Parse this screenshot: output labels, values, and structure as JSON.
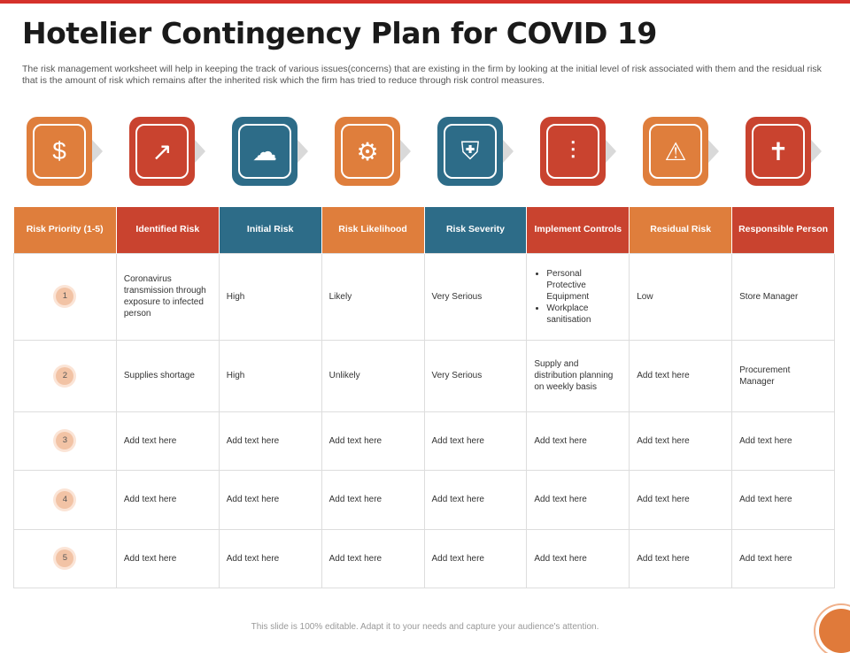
{
  "title": "Hotelier Contingency Plan for COVID 19",
  "description": "The risk management worksheet will help in keeping the track of various issues(concerns) that are existing in the firm by looking at the initial level of risk associated with them and the residual risk that is the amount of risk which remains after the inherited risk which the firm has tried to reduce through risk control measures.",
  "colors": {
    "orange": "#df7e3c",
    "red": "#c9432f",
    "blue": "#2d6c88"
  },
  "icons": [
    {
      "name": "dollar-chart-icon",
      "glyph": "$",
      "color": "#df7e3c"
    },
    {
      "name": "hand-growth-icon",
      "glyph": "↗",
      "color": "#c9432f"
    },
    {
      "name": "storm-alert-icon",
      "glyph": "☁",
      "color": "#2d6c88"
    },
    {
      "name": "gear-question-icon",
      "glyph": "⚙",
      "color": "#df7e3c"
    },
    {
      "name": "person-shield-icon",
      "glyph": "⛨",
      "color": "#2d6c88"
    },
    {
      "name": "hand-controls-icon",
      "glyph": "⫶",
      "color": "#c9432f"
    },
    {
      "name": "hands-warning-icon",
      "glyph": "⚠",
      "color": "#df7e3c"
    },
    {
      "name": "person-hazards-icon",
      "glyph": "✝",
      "color": "#c9432f"
    }
  ],
  "table": {
    "headers": [
      "Risk Priority (1-5)",
      "Identified Risk",
      "Initial Risk",
      "Risk Likelihood",
      "Risk Severity",
      "Implement  Controls",
      "Residual Risk",
      "Responsible Person"
    ],
    "header_colors": [
      "#df7e3c",
      "#c9432f",
      "#2d6c88",
      "#df7e3c",
      "#2d6c88",
      "#c9432f",
      "#df7e3c",
      "#c9432f"
    ],
    "rows": [
      {
        "priority": "1",
        "identified": "Coronavirus transmission through exposure to infected person",
        "initial": "High",
        "likelihood": "Likely",
        "severity": "Very Serious",
        "controls": [
          "Personal Protective Equipment",
          "Workplace sanitisation"
        ],
        "residual": "Low",
        "person": "Store Manager"
      },
      {
        "priority": "2",
        "identified": "Supplies shortage",
        "initial": "High",
        "likelihood": "Unlikely",
        "severity": "Very Serious",
        "controls_text": "Supply and distribution planning on weekly basis",
        "residual": "Add text here",
        "person": "Procurement Manager"
      },
      {
        "priority": "3",
        "identified": "Add text here",
        "initial": "Add text here",
        "likelihood": "Add text here",
        "severity": "Add text here",
        "controls_text": "Add text here",
        "residual": "Add text here",
        "person": "Add text here"
      },
      {
        "priority": "4",
        "identified": "Add text here",
        "initial": "Add text here",
        "likelihood": "Add text here",
        "severity": "Add text here",
        "controls_text": "Add text here",
        "residual": "Add text here",
        "person": "Add text here"
      },
      {
        "priority": "5",
        "identified": "Add text here",
        "initial": "Add text here",
        "likelihood": "Add text here",
        "severity": "Add text here",
        "controls_text": "Add text here",
        "residual": "Add text here",
        "person": "Add text here"
      }
    ]
  },
  "footer": "This slide is 100% editable. Adapt it to your needs and capture your audience's attention."
}
